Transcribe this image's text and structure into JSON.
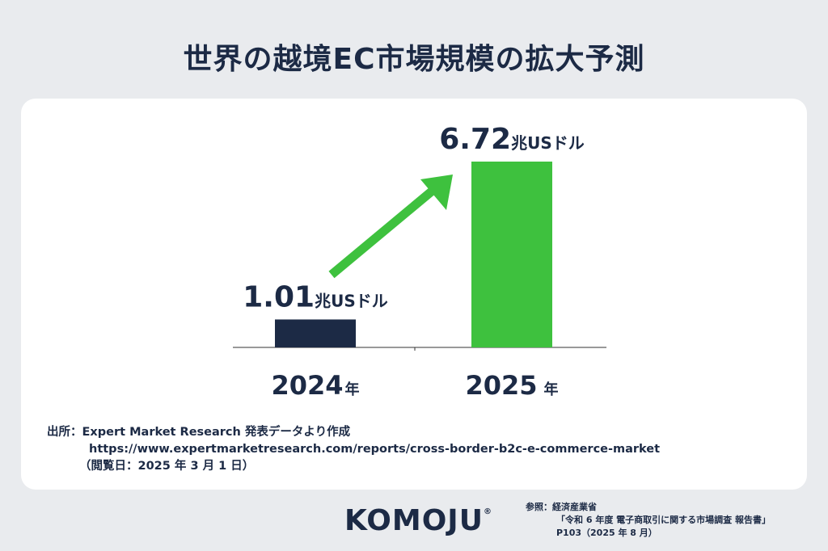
{
  "title": "世界の越境EC市場規模の拡大予測",
  "chart_data": {
    "type": "bar",
    "categories": [
      "2024年",
      "2025 年"
    ],
    "values": [
      1.01,
      6.72
    ],
    "value_labels": [
      {
        "number": "1.01",
        "unit": "兆USドル"
      },
      {
        "number": "6.72",
        "unit": "兆USドル"
      }
    ],
    "category_labels": [
      {
        "year": "2024",
        "suffix": "年"
      },
      {
        "year": "2025",
        "suffix": "年"
      }
    ],
    "colors": [
      "#1c2a45",
      "#3ec13e"
    ],
    "arrow_color": "#3ec13e",
    "ylim": [
      0,
      6.72
    ],
    "grid": false,
    "title": "",
    "xlabel": "",
    "ylabel": ""
  },
  "source": {
    "line1": "出所：Expert Market Research 発表データより作成",
    "line2": "https://www.expertmarketresearch.com/reports/cross-border-b2c-e-commerce-market",
    "line3": "（閲覧日：2025 年 3 月 1 日）"
  },
  "logo": {
    "text": "KOMOJU",
    "mark": "®"
  },
  "reference": {
    "line1": "参照：経済産業省",
    "line2": "「令和 6 年度 電子商取引に関する市場調査 報告書」",
    "line3": "P103（2025 年 8 月）"
  }
}
